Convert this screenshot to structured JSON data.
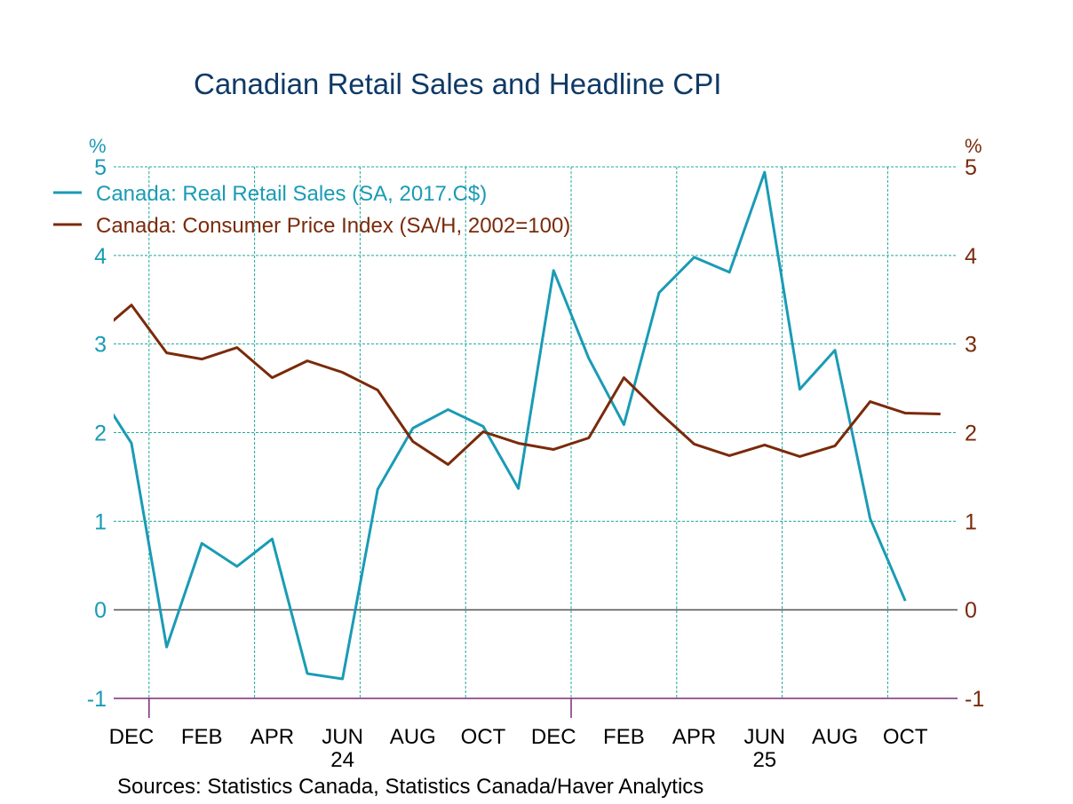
{
  "chart_data": {
    "type": "line",
    "title": "Canadian Retail Sales and Headline CPI",
    "left_axis_unit": "%",
    "right_axis_unit": "%",
    "ylim": [
      -1,
      5
    ],
    "yticks": [
      -1,
      0,
      1,
      2,
      3,
      4,
      5
    ],
    "grid": true,
    "legend_placement": "top-left",
    "x_month_labels": [
      "DEC",
      "FEB",
      "APR",
      "JUN",
      "AUG",
      "OCT",
      "DEC",
      "FEB",
      "APR",
      "JUN",
      "AUG",
      "OCT"
    ],
    "x_year_labels": [
      "24",
      "25"
    ],
    "x": [
      "2023-11",
      "2023-12",
      "2024-01",
      "2024-02",
      "2024-03",
      "2024-04",
      "2024-05",
      "2024-06",
      "2024-07",
      "2024-08",
      "2024-09",
      "2024-10",
      "2024-11",
      "2024-12",
      "2025-01",
      "2025-02",
      "2025-03",
      "2025-04",
      "2025-05",
      "2025-06",
      "2025-07",
      "2025-08",
      "2025-09",
      "2025-10",
      "2025-11"
    ],
    "series": [
      {
        "name": "Canada: Real Retail Sales (SA, 2017.C$)",
        "color": "#1a9bb5",
        "values": [
          2.5,
          1.88,
          -0.42,
          0.75,
          0.49,
          0.8,
          -0.72,
          -0.78,
          1.36,
          2.05,
          2.26,
          2.07,
          1.37,
          3.83,
          2.84,
          2.09,
          3.58,
          3.98,
          3.81,
          4.94,
          2.49,
          2.93,
          1.03,
          0.1,
          null
        ]
      },
      {
        "name": "Canada: Consumer Price Index (SA/H, 2002=100)",
        "color": "#7a2a0a",
        "values": [
          3.1,
          3.44,
          2.9,
          2.83,
          2.96,
          2.62,
          2.81,
          2.68,
          2.48,
          1.9,
          1.64,
          2.01,
          1.88,
          1.81,
          1.94,
          2.62,
          2.23,
          1.87,
          1.74,
          1.86,
          1.73,
          1.85,
          2.35,
          2.22,
          2.21
        ]
      }
    ],
    "source": "Sources:  Statistics Canada, Statistics Canada/Haver Analytics"
  }
}
